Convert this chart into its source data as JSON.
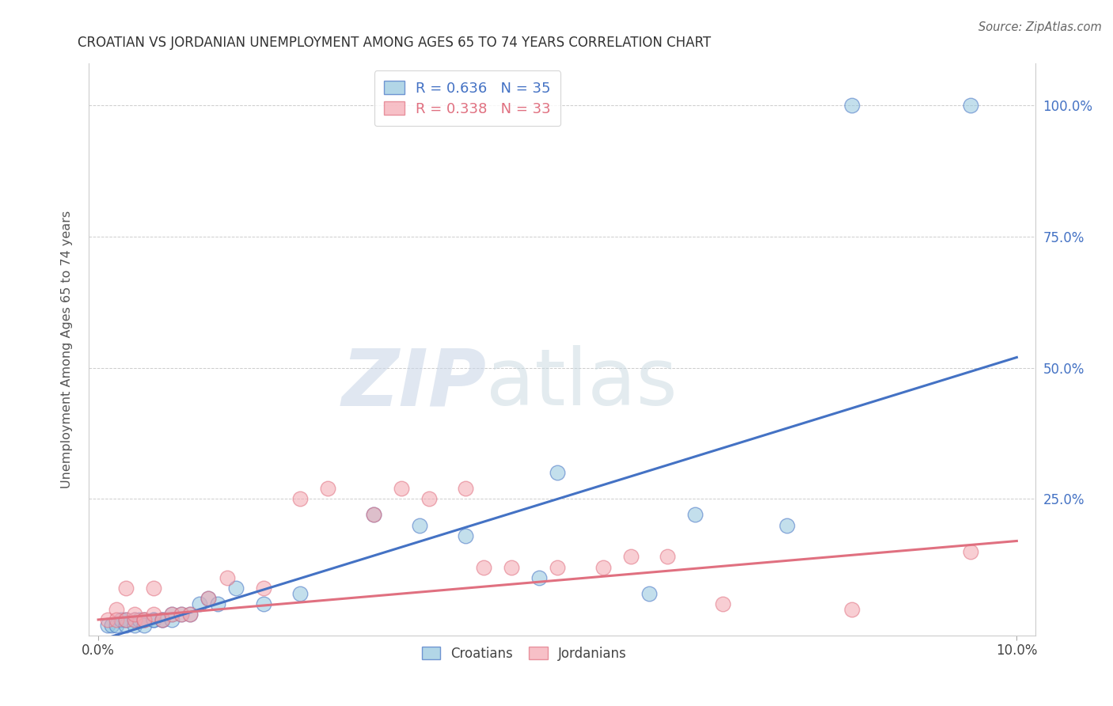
{
  "title": "CROATIAN VS JORDANIAN UNEMPLOYMENT AMONG AGES 65 TO 74 YEARS CORRELATION CHART",
  "source": "Source: ZipAtlas.com",
  "xlabel": "",
  "ylabel": "Unemployment Among Ages 65 to 74 years",
  "xlim": [
    -0.001,
    0.102
  ],
  "ylim": [
    -0.01,
    1.08
  ],
  "xticks": [
    0.0,
    0.1
  ],
  "yticks": [
    0.25,
    0.5,
    0.75,
    1.0
  ],
  "xticklabels": [
    "0.0%",
    "10.0%"
  ],
  "yticklabels": [
    "25.0%",
    "50.0%",
    "75.0%",
    "100.0%"
  ],
  "croatian_color": "#92c5de",
  "jordanian_color": "#f4a6b0",
  "blue_line_color": "#4472c4",
  "pink_line_color": "#e07080",
  "legend_R_croatian": "R = 0.636",
  "legend_N_croatian": "N = 35",
  "legend_R_jordanian": "R = 0.338",
  "legend_N_jordanian": "N = 33",
  "watermark_zip": "ZIP",
  "watermark_atlas": "atlas",
  "background_color": "#ffffff",
  "grid_color": "#c8c8c8",
  "croatian_x": [
    0.001,
    0.0015,
    0.002,
    0.0025,
    0.003,
    0.003,
    0.004,
    0.004,
    0.0045,
    0.005,
    0.005,
    0.006,
    0.006,
    0.007,
    0.007,
    0.008,
    0.008,
    0.009,
    0.01,
    0.011,
    0.012,
    0.013,
    0.015,
    0.018,
    0.022,
    0.03,
    0.035,
    0.04,
    0.048,
    0.05,
    0.06,
    0.065,
    0.075,
    0.082,
    0.095
  ],
  "croatian_y": [
    0.01,
    0.01,
    0.01,
    0.02,
    0.01,
    0.02,
    0.02,
    0.01,
    0.02,
    0.02,
    0.01,
    0.02,
    0.02,
    0.02,
    0.02,
    0.03,
    0.02,
    0.03,
    0.03,
    0.05,
    0.06,
    0.05,
    0.08,
    0.05,
    0.07,
    0.22,
    0.2,
    0.18,
    0.1,
    0.3,
    0.07,
    0.22,
    0.2,
    1.0,
    1.0
  ],
  "jordanian_x": [
    0.001,
    0.002,
    0.002,
    0.003,
    0.003,
    0.004,
    0.004,
    0.005,
    0.005,
    0.006,
    0.006,
    0.007,
    0.008,
    0.009,
    0.01,
    0.012,
    0.014,
    0.018,
    0.022,
    0.025,
    0.03,
    0.033,
    0.036,
    0.04,
    0.042,
    0.045,
    0.05,
    0.055,
    0.058,
    0.062,
    0.068,
    0.082,
    0.095
  ],
  "jordanian_y": [
    0.02,
    0.04,
    0.02,
    0.02,
    0.08,
    0.02,
    0.03,
    0.02,
    0.02,
    0.03,
    0.08,
    0.02,
    0.03,
    0.03,
    0.03,
    0.06,
    0.1,
    0.08,
    0.25,
    0.27,
    0.22,
    0.27,
    0.25,
    0.27,
    0.12,
    0.12,
    0.12,
    0.12,
    0.14,
    0.14,
    0.05,
    0.04,
    0.15
  ],
  "blue_line_x": [
    0.0,
    0.1
  ],
  "blue_line_y": [
    -0.02,
    0.52
  ],
  "pink_line_x": [
    0.0,
    0.1
  ],
  "pink_line_y": [
    0.02,
    0.17
  ]
}
